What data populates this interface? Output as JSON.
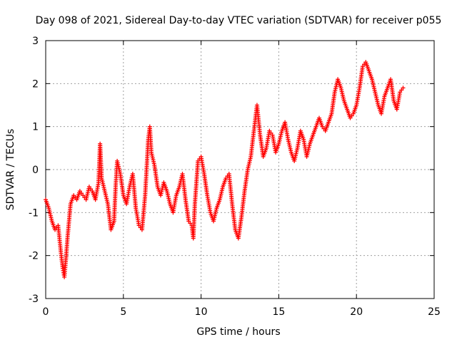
{
  "chart_data": {
    "type": "scatter",
    "title": "Day 098 of 2021, Sidereal Day-to-day VTEC variation (SDTVAR) for receiver p055",
    "xlabel": "GPS time / hours",
    "ylabel": "SDTVAR / TECUs",
    "xlim": [
      0,
      25
    ],
    "ylim": [
      -3,
      3
    ],
    "xticks": [
      0,
      5,
      10,
      15,
      20,
      25
    ],
    "yticks": [
      -3,
      -2,
      -1,
      0,
      1,
      2,
      3
    ],
    "xtick_labels": [
      "0",
      "5",
      "10",
      "15",
      "20",
      "25"
    ],
    "ytick_labels": [
      "-3",
      "-2",
      "-1",
      "0",
      "1",
      "2",
      "3"
    ],
    "grid": true,
    "marker": "+",
    "color": "#ff0000",
    "series": [
      {
        "name": "SDTVAR",
        "x": [
          0.0,
          0.2,
          0.4,
          0.6,
          0.8,
          1.0,
          1.1,
          1.2,
          1.3,
          1.4,
          1.6,
          1.8,
          2.0,
          2.2,
          2.4,
          2.6,
          2.8,
          3.0,
          3.2,
          3.4,
          3.5,
          3.6,
          3.8,
          4.0,
          4.2,
          4.4,
          4.5,
          4.6,
          4.8,
          5.0,
          5.2,
          5.4,
          5.6,
          5.8,
          6.0,
          6.2,
          6.4,
          6.6,
          6.7,
          6.8,
          7.0,
          7.2,
          7.4,
          7.6,
          7.8,
          8.0,
          8.2,
          8.4,
          8.6,
          8.8,
          9.0,
          9.2,
          9.4,
          9.5,
          9.6,
          9.8,
          10.0,
          10.2,
          10.4,
          10.6,
          10.8,
          11.0,
          11.2,
          11.4,
          11.6,
          11.8,
          12.0,
          12.2,
          12.4,
          12.6,
          12.8,
          13.0,
          13.2,
          13.4,
          13.6,
          13.8,
          14.0,
          14.2,
          14.4,
          14.6,
          14.8,
          15.0,
          15.2,
          15.4,
          15.6,
          15.8,
          16.0,
          16.2,
          16.4,
          16.6,
          16.8,
          17.0,
          17.2,
          17.4,
          17.6,
          17.8,
          18.0,
          18.2,
          18.4,
          18.6,
          18.8,
          19.0,
          19.2,
          19.4,
          19.6,
          19.8,
          20.0,
          20.2,
          20.4,
          20.6,
          20.8,
          21.0,
          21.2,
          21.4,
          21.6,
          21.8,
          22.0,
          22.2,
          22.4,
          22.6,
          22.8,
          23.0
        ],
        "y": [
          -0.7,
          -0.9,
          -1.2,
          -1.4,
          -1.3,
          -2.0,
          -2.3,
          -2.5,
          -2.1,
          -1.6,
          -0.8,
          -0.6,
          -0.7,
          -0.5,
          -0.6,
          -0.7,
          -0.4,
          -0.5,
          -0.7,
          -0.3,
          0.6,
          -0.2,
          -0.5,
          -0.8,
          -1.4,
          -1.2,
          -0.4,
          0.2,
          -0.1,
          -0.6,
          -0.8,
          -0.4,
          -0.1,
          -0.9,
          -1.3,
          -1.4,
          -0.6,
          0.7,
          1.0,
          0.4,
          0.1,
          -0.4,
          -0.6,
          -0.3,
          -0.5,
          -0.8,
          -1.0,
          -0.6,
          -0.4,
          -0.1,
          -0.7,
          -1.2,
          -1.3,
          -1.6,
          -0.8,
          0.2,
          0.3,
          -0.1,
          -0.6,
          -1.0,
          -1.2,
          -0.9,
          -0.7,
          -0.4,
          -0.2,
          -0.1,
          -0.8,
          -1.4,
          -1.6,
          -1.1,
          -0.5,
          0.0,
          0.3,
          0.9,
          1.5,
          0.8,
          0.3,
          0.5,
          0.9,
          0.8,
          0.4,
          0.6,
          0.9,
          1.1,
          0.7,
          0.4,
          0.2,
          0.5,
          0.9,
          0.7,
          0.3,
          0.6,
          0.8,
          1.0,
          1.2,
          1.0,
          0.9,
          1.1,
          1.3,
          1.8,
          2.1,
          1.9,
          1.6,
          1.4,
          1.2,
          1.3,
          1.5,
          1.9,
          2.4,
          2.5,
          2.3,
          2.1,
          1.8,
          1.5,
          1.3,
          1.7,
          1.9,
          2.1,
          1.6,
          1.4,
          1.8,
          1.9
        ]
      }
    ]
  }
}
